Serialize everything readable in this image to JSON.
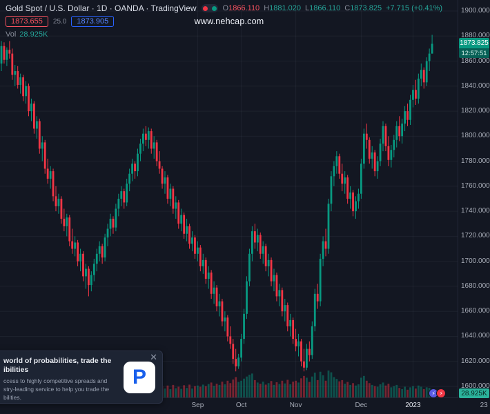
{
  "watermark": "www.nehcap.com",
  "header": {
    "symbol_line": "Gold Spot / U.S. Dollar · 1D · OANDA · TradingView",
    "ohlc": {
      "o_label": "O",
      "o": "1866.110",
      "h_label": "H",
      "h": "1881.020",
      "l_label": "L",
      "l": "1866.110",
      "c_label": "C",
      "c": "1873.825",
      "change": "+7.715 (+0.41%)"
    },
    "bid": "1873.655",
    "spread": "25.0",
    "ask": "1873.905",
    "vol_label": "Vol",
    "vol_value": "28.925K"
  },
  "price_axis": {
    "labels": [
      "1900.000",
      "1880.000",
      "1860.000",
      "1840.000",
      "1820.000",
      "1800.000",
      "1780.000",
      "1760.000",
      "1740.000",
      "1720.000",
      "1700.000",
      "1680.000",
      "1660.000",
      "1640.000",
      "1620.000",
      "1600.000"
    ],
    "last_price": "1873.825",
    "countdown": "12:57:51",
    "volume_badge": "28.925K"
  },
  "time_axis": {
    "labels": [
      {
        "text": "Sep",
        "i": 72
      },
      {
        "text": "Oct",
        "i": 88
      },
      {
        "text": "Nov",
        "i": 108
      },
      {
        "text": "Dec",
        "i": 132
      },
      {
        "text": "2023",
        "i": 151,
        "year": true
      },
      {
        "text": "23",
        "i": 177,
        "grid": false
      }
    ]
  },
  "ad": {
    "title_line1": "world of probabilities, trade the",
    "title_line2": "ibilities",
    "body_line1": "ccess to highly competitive spreads and",
    "body_line2": "stry-leading service to help you trade the",
    "body_line3": "bilities.",
    "logo_letter": "P",
    "close_label": "✕"
  },
  "icons": {
    "boost_glyph": "⚡",
    "fire_glyph": "⚡"
  },
  "colors": {
    "up": "#089981",
    "down": "#f23645",
    "legend_up": "#26a69a",
    "legend_open": "#f7525f",
    "bid": "#f7525f",
    "ask": "#2962ff",
    "background": "#131722",
    "grid": "rgba(170,180,200,0.07)",
    "axis_text": "#a8adb8"
  },
  "chart_data": {
    "type": "candlestick",
    "title": "Gold Spot / U.S. Dollar",
    "interval": "1D",
    "ylim": [
      1600,
      1900
    ],
    "columns": [
      "open",
      "high",
      "low",
      "close",
      "volume_k"
    ],
    "candles": [
      [
        1858,
        1876,
        1852,
        1872,
        38
      ],
      [
        1872,
        1875,
        1858,
        1861,
        32
      ],
      [
        1861,
        1871,
        1856,
        1869,
        30
      ],
      [
        1869,
        1876,
        1862,
        1866,
        28
      ],
      [
        1866,
        1870,
        1845,
        1849,
        45
      ],
      [
        1849,
        1857,
        1840,
        1852,
        33
      ],
      [
        1852,
        1856,
        1838,
        1841,
        31
      ],
      [
        1841,
        1850,
        1834,
        1847,
        29
      ],
      [
        1847,
        1849,
        1828,
        1832,
        36
      ],
      [
        1832,
        1844,
        1826,
        1840,
        30
      ],
      [
        1840,
        1842,
        1816,
        1820,
        42
      ],
      [
        1820,
        1830,
        1812,
        1826,
        31
      ],
      [
        1826,
        1828,
        1802,
        1806,
        44
      ],
      [
        1806,
        1816,
        1798,
        1812,
        33
      ],
      [
        1812,
        1814,
        1786,
        1790,
        46
      ],
      [
        1790,
        1800,
        1780,
        1795,
        35
      ],
      [
        1795,
        1797,
        1770,
        1774,
        44
      ],
      [
        1774,
        1782,
        1762,
        1766,
        38
      ],
      [
        1766,
        1776,
        1758,
        1772,
        33
      ],
      [
        1772,
        1774,
        1748,
        1752,
        40
      ],
      [
        1752,
        1760,
        1740,
        1744,
        42
      ],
      [
        1744,
        1754,
        1738,
        1750,
        34
      ],
      [
        1750,
        1752,
        1730,
        1734,
        39
      ],
      [
        1734,
        1742,
        1724,
        1728,
        36
      ],
      [
        1728,
        1738,
        1720,
        1735,
        32
      ],
      [
        1735,
        1737,
        1712,
        1716,
        41
      ],
      [
        1716,
        1726,
        1706,
        1710,
        38
      ],
      [
        1710,
        1720,
        1704,
        1715,
        31
      ],
      [
        1715,
        1717,
        1696,
        1700,
        36
      ],
      [
        1700,
        1710,
        1692,
        1706,
        33
      ],
      [
        1706,
        1708,
        1684,
        1688,
        43
      ],
      [
        1688,
        1698,
        1678,
        1694,
        37
      ],
      [
        1694,
        1696,
        1672,
        1681,
        48
      ],
      [
        1681,
        1692,
        1676,
        1689,
        34
      ],
      [
        1689,
        1702,
        1684,
        1698,
        36
      ],
      [
        1698,
        1710,
        1692,
        1706,
        32
      ],
      [
        1706,
        1716,
        1700,
        1712,
        30
      ],
      [
        1712,
        1714,
        1698,
        1703,
        33
      ],
      [
        1703,
        1722,
        1700,
        1719,
        29
      ],
      [
        1719,
        1730,
        1712,
        1726,
        35
      ],
      [
        1726,
        1738,
        1720,
        1734,
        31
      ],
      [
        1734,
        1736,
        1722,
        1727,
        28
      ],
      [
        1727,
        1746,
        1724,
        1742,
        34
      ],
      [
        1742,
        1754,
        1736,
        1750,
        36
      ],
      [
        1750,
        1760,
        1744,
        1756,
        30
      ],
      [
        1756,
        1758,
        1742,
        1747,
        27
      ],
      [
        1747,
        1766,
        1744,
        1762,
        32
      ],
      [
        1762,
        1774,
        1756,
        1770,
        35
      ],
      [
        1770,
        1782,
        1764,
        1778,
        33
      ],
      [
        1778,
        1780,
        1766,
        1772,
        29
      ],
      [
        1772,
        1790,
        1768,
        1786,
        38
      ],
      [
        1786,
        1798,
        1780,
        1794,
        35
      ],
      [
        1794,
        1806,
        1788,
        1802,
        40
      ],
      [
        1802,
        1808,
        1792,
        1797,
        33
      ],
      [
        1797,
        1807,
        1790,
        1804,
        36
      ],
      [
        1804,
        1806,
        1786,
        1790,
        39
      ],
      [
        1790,
        1800,
        1782,
        1795,
        31
      ],
      [
        1795,
        1797,
        1776,
        1780,
        34
      ],
      [
        1780,
        1788,
        1770,
        1774,
        36
      ],
      [
        1774,
        1776,
        1758,
        1762,
        40
      ],
      [
        1762,
        1772,
        1754,
        1767,
        32
      ],
      [
        1767,
        1769,
        1746,
        1750,
        42
      ],
      [
        1750,
        1762,
        1744,
        1758,
        30
      ],
      [
        1758,
        1760,
        1738,
        1742,
        44
      ],
      [
        1742,
        1752,
        1734,
        1747,
        33
      ],
      [
        1747,
        1749,
        1726,
        1730,
        38
      ],
      [
        1730,
        1742,
        1724,
        1737,
        31
      ],
      [
        1737,
        1739,
        1718,
        1722,
        43
      ],
      [
        1722,
        1734,
        1716,
        1728,
        34
      ],
      [
        1728,
        1730,
        1710,
        1714,
        45
      ],
      [
        1714,
        1724,
        1708,
        1719,
        32
      ],
      [
        1719,
        1721,
        1702,
        1706,
        40
      ],
      [
        1706,
        1716,
        1700,
        1711,
        42
      ],
      [
        1711,
        1713,
        1692,
        1696,
        38
      ],
      [
        1696,
        1706,
        1690,
        1701,
        45
      ],
      [
        1701,
        1703,
        1682,
        1686,
        40
      ],
      [
        1686,
        1696,
        1678,
        1691,
        47
      ],
      [
        1691,
        1693,
        1670,
        1674,
        52
      ],
      [
        1674,
        1684,
        1666,
        1679,
        41
      ],
      [
        1679,
        1681,
        1660,
        1664,
        48
      ],
      [
        1664,
        1674,
        1656,
        1668,
        44
      ],
      [
        1668,
        1670,
        1648,
        1652,
        55
      ],
      [
        1652,
        1660,
        1644,
        1655,
        46
      ],
      [
        1655,
        1657,
        1636,
        1640,
        58
      ],
      [
        1640,
        1648,
        1630,
        1634,
        50
      ],
      [
        1634,
        1638,
        1618,
        1622,
        62
      ],
      [
        1622,
        1630,
        1612,
        1616,
        70
      ],
      [
        1616,
        1626,
        1614,
        1623,
        54
      ],
      [
        1623,
        1642,
        1620,
        1638,
        58
      ],
      [
        1638,
        1662,
        1634,
        1658,
        65
      ],
      [
        1658,
        1688,
        1654,
        1684,
        72
      ],
      [
        1684,
        1710,
        1680,
        1706,
        78
      ],
      [
        1706,
        1728,
        1700,
        1724,
        82
      ],
      [
        1724,
        1730,
        1710,
        1715,
        60
      ],
      [
        1715,
        1726,
        1708,
        1721,
        52
      ],
      [
        1721,
        1723,
        1702,
        1706,
        48
      ],
      [
        1706,
        1716,
        1698,
        1712,
        55
      ],
      [
        1712,
        1714,
        1692,
        1696,
        45
      ],
      [
        1696,
        1706,
        1688,
        1701,
        50
      ],
      [
        1701,
        1703,
        1680,
        1684,
        57
      ],
      [
        1684,
        1694,
        1676,
        1689,
        44
      ],
      [
        1689,
        1691,
        1668,
        1672,
        53
      ],
      [
        1672,
        1682,
        1664,
        1677,
        47
      ],
      [
        1677,
        1679,
        1656,
        1660,
        58
      ],
      [
        1660,
        1670,
        1652,
        1665,
        49
      ],
      [
        1665,
        1667,
        1644,
        1648,
        61
      ],
      [
        1648,
        1658,
        1640,
        1653,
        46
      ],
      [
        1653,
        1655,
        1634,
        1638,
        55
      ],
      [
        1638,
        1646,
        1628,
        1632,
        58
      ],
      [
        1632,
        1642,
        1624,
        1636,
        52
      ],
      [
        1636,
        1638,
        1616,
        1620,
        66
      ],
      [
        1620,
        1630,
        1612,
        1615,
        74
      ],
      [
        1615,
        1634,
        1613,
        1630,
        68
      ],
      [
        1630,
        1636,
        1620,
        1625,
        54
      ],
      [
        1625,
        1652,
        1622,
        1648,
        72
      ],
      [
        1648,
        1678,
        1644,
        1674,
        85
      ],
      [
        1674,
        1682,
        1662,
        1668,
        60
      ],
      [
        1668,
        1706,
        1664,
        1702,
        88
      ],
      [
        1702,
        1720,
        1696,
        1716,
        76
      ],
      [
        1716,
        1726,
        1704,
        1710,
        58
      ],
      [
        1710,
        1750,
        1706,
        1746,
        92
      ],
      [
        1746,
        1772,
        1740,
        1768,
        86
      ],
      [
        1768,
        1780,
        1760,
        1776,
        70
      ],
      [
        1776,
        1788,
        1770,
        1784,
        64
      ],
      [
        1784,
        1786,
        1766,
        1770,
        56
      ],
      [
        1770,
        1778,
        1756,
        1762,
        60
      ],
      [
        1762,
        1772,
        1754,
        1767,
        48
      ],
      [
        1767,
        1769,
        1746,
        1750,
        54
      ],
      [
        1750,
        1760,
        1742,
        1755,
        44
      ],
      [
        1755,
        1757,
        1736,
        1740,
        50
      ],
      [
        1740,
        1752,
        1734,
        1748,
        42
      ],
      [
        1748,
        1758,
        1742,
        1754,
        46
      ],
      [
        1754,
        1782,
        1750,
        1778,
        68
      ],
      [
        1778,
        1806,
        1774,
        1802,
        74
      ],
      [
        1802,
        1810,
        1790,
        1797,
        58
      ],
      [
        1797,
        1799,
        1778,
        1782,
        50
      ],
      [
        1782,
        1792,
        1774,
        1787,
        44
      ],
      [
        1787,
        1789,
        1768,
        1772,
        40
      ],
      [
        1772,
        1784,
        1766,
        1780,
        38
      ],
      [
        1780,
        1798,
        1776,
        1794,
        46
      ],
      [
        1794,
        1812,
        1788,
        1808,
        52
      ],
      [
        1808,
        1810,
        1788,
        1792,
        42
      ],
      [
        1792,
        1800,
        1776,
        1781,
        48
      ],
      [
        1781,
        1793,
        1775,
        1789,
        36
      ],
      [
        1789,
        1801,
        1783,
        1797,
        40
      ],
      [
        1797,
        1812,
        1791,
        1808,
        44
      ],
      [
        1808,
        1816,
        1796,
        1800,
        34
      ],
      [
        1800,
        1814,
        1794,
        1810,
        30
      ],
      [
        1810,
        1824,
        1804,
        1820,
        38
      ],
      [
        1820,
        1826,
        1808,
        1813,
        28
      ],
      [
        1813,
        1833,
        1809,
        1829,
        36
      ],
      [
        1829,
        1841,
        1823,
        1837,
        40
      ],
      [
        1837,
        1845,
        1825,
        1830,
        32
      ],
      [
        1830,
        1850,
        1826,
        1846,
        42
      ],
      [
        1846,
        1858,
        1840,
        1853,
        38
      ],
      [
        1853,
        1855,
        1838,
        1843,
        30
      ],
      [
        1843,
        1863,
        1840,
        1860,
        36
      ],
      [
        1860,
        1870,
        1852,
        1866,
        34
      ],
      [
        1866,
        1881,
        1866,
        1873.825,
        28.925
      ]
    ]
  }
}
